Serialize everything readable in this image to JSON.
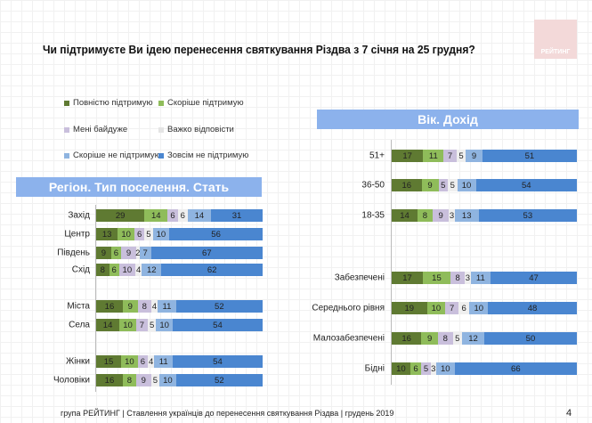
{
  "title": "Чи підтримуєте Ви ідею перенесення святкування Різдва з 7 січня на 25 грудня?",
  "logo_text": "РЕЙТИНГ",
  "footer": "група РЕЙТИНГ | Ставлення українців до перенесення святкування Різдва  | грудень 2019",
  "page_number": "4",
  "legend": [
    {
      "label": "Повністю підтримую",
      "color": "#5f7a32"
    },
    {
      "label": "Скоріше  підтримую",
      "color": "#8fbc5a"
    },
    {
      "label": "Мені байдуже",
      "color": "#c9bfdc"
    },
    {
      "label": "Важко відповісти",
      "color": "#efefef"
    },
    {
      "label": "Скоріше  не підтримую",
      "color": "#8fb4e0"
    },
    {
      "label": "Зовсім не підтримую",
      "color": "#4a86d0"
    }
  ],
  "chart_data": [
    {
      "type": "bar",
      "stacked": true,
      "orientation": "horizontal",
      "title": "Регіон. Тип поселення. Стать",
      "categories": [
        "Захід",
        "Центр",
        "Південь",
        "Схід",
        "",
        "Міста",
        "Села",
        "",
        "Жінки",
        "Чоловіки"
      ],
      "series": [
        {
          "name": "Повністю підтримую",
          "values": [
            29,
            13,
            9,
            8,
            null,
            16,
            14,
            null,
            15,
            16
          ]
        },
        {
          "name": "Скоріше  підтримую",
          "values": [
            14,
            10,
            6,
            6,
            null,
            9,
            10,
            null,
            10,
            8
          ]
        },
        {
          "name": "Мені байдуже",
          "values": [
            6,
            6,
            9,
            10,
            null,
            8,
            7,
            null,
            6,
            9
          ]
        },
        {
          "name": "Важко відповісти",
          "values": [
            6,
            5,
            2,
            4,
            null,
            4,
            5,
            null,
            4,
            5
          ]
        },
        {
          "name": "Скоріше  не підтримую",
          "values": [
            14,
            10,
            7,
            12,
            null,
            11,
            10,
            null,
            11,
            10
          ]
        },
        {
          "name": "Зовсім не підтримую",
          "values": [
            31,
            56,
            67,
            62,
            null,
            52,
            54,
            null,
            54,
            52
          ]
        }
      ]
    },
    {
      "type": "bar",
      "stacked": true,
      "orientation": "horizontal",
      "title": "Вік. Дохід",
      "categories": [
        "51+",
        "36-50",
        "18-35",
        "",
        "Забезпечені",
        "Середнього рівня",
        "Малозабезпечені",
        "Бідні"
      ],
      "series": [
        {
          "name": "Повністю підтримую",
          "values": [
            17,
            16,
            14,
            null,
            17,
            19,
            16,
            10
          ]
        },
        {
          "name": "Скоріше  підтримую",
          "values": [
            11,
            9,
            8,
            null,
            15,
            10,
            9,
            6
          ]
        },
        {
          "name": "Мені байдуже",
          "values": [
            7,
            5,
            9,
            null,
            8,
            7,
            8,
            5
          ]
        },
        {
          "name": "Важко відповісти",
          "values": [
            5,
            5,
            3,
            null,
            3,
            6,
            5,
            3
          ]
        },
        {
          "name": "Скоріше  не підтримую",
          "values": [
            9,
            10,
            13,
            null,
            11,
            10,
            12,
            10
          ]
        },
        {
          "name": "Зовсім не підтримую",
          "values": [
            51,
            54,
            53,
            null,
            47,
            48,
            50,
            66
          ]
        }
      ]
    }
  ]
}
